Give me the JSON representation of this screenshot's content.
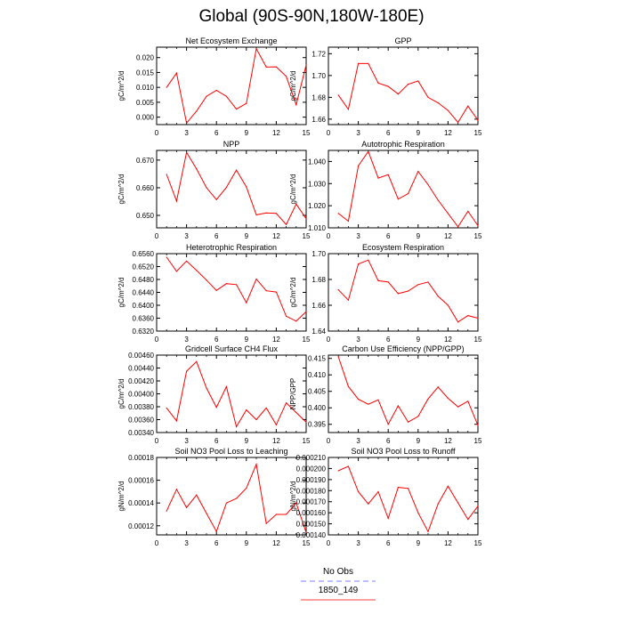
{
  "title": "Global (90S-90N,180W-180E)",
  "legend": [
    {
      "label": "No Obs",
      "color": "#9999ff",
      "dash": true
    },
    {
      "label": "1850_149",
      "color": "#ff6666",
      "dash": false
    }
  ],
  "line_color": "#ff0000",
  "chart_data": [
    {
      "type": "line",
      "title": "Net Ecosystem Exchange",
      "ylabel": "gC/m^2/d",
      "xlim": [
        0,
        15
      ],
      "xticks": [
        0,
        3,
        6,
        9,
        12,
        15
      ],
      "ylim": [
        -0.0025,
        0.0235
      ],
      "yticks": [
        0.0,
        0.005,
        0.01,
        0.015,
        0.02
      ],
      "yticklabels": [
        "0.000",
        "0.005",
        "0.010",
        "0.015",
        "0.020"
      ],
      "x": [
        1,
        2,
        3,
        4,
        5,
        6,
        7,
        8,
        9,
        10,
        11,
        12,
        13,
        14,
        15
      ],
      "y": [
        0.01,
        0.0148,
        -0.002,
        0.002,
        0.007,
        0.009,
        0.007,
        0.0027,
        0.0046,
        0.023,
        0.0168,
        0.0169,
        0.0137,
        0.0042,
        0.0175
      ]
    },
    {
      "type": "line",
      "title": "GPP",
      "ylabel": "gC/m^2/d",
      "xlim": [
        0,
        15
      ],
      "xticks": [
        0,
        3,
        6,
        9,
        12,
        15
      ],
      "ylim": [
        1.655,
        1.726
      ],
      "yticks": [
        1.66,
        1.68,
        1.7,
        1.72
      ],
      "yticklabels": [
        "1.66",
        "1.68",
        "1.70",
        "1.72"
      ],
      "x": [
        1,
        2,
        3,
        4,
        5,
        6,
        7,
        8,
        9,
        10,
        11,
        12,
        13,
        14,
        15
      ],
      "y": [
        1.682,
        1.669,
        1.711,
        1.711,
        1.693,
        1.69,
        1.683,
        1.692,
        1.695,
        1.68,
        1.675,
        1.668,
        1.657,
        1.672,
        1.659
      ]
    },
    {
      "type": "line",
      "title": "NPP",
      "ylabel": "gC/m^2/d",
      "xlim": [
        0,
        15
      ],
      "xticks": [
        0,
        3,
        6,
        9,
        12,
        15
      ],
      "ylim": [
        0.6455,
        0.6735
      ],
      "yticks": [
        0.65,
        0.66,
        0.67
      ],
      "yticklabels": [
        "0.650",
        "0.660",
        "0.670"
      ],
      "x": [
        1,
        2,
        3,
        4,
        5,
        6,
        7,
        8,
        9,
        10,
        11,
        12,
        13,
        14,
        15
      ],
      "y": [
        0.6648,
        0.6552,
        0.6728,
        0.6668,
        0.66,
        0.6557,
        0.6601,
        0.6664,
        0.6603,
        0.6502,
        0.6509,
        0.6507,
        0.6467,
        0.6541,
        0.6488
      ]
    },
    {
      "type": "line",
      "title": "Autotrophic Respiration",
      "ylabel": "gC/m^2/d",
      "xlim": [
        0,
        15
      ],
      "xticks": [
        0,
        3,
        6,
        9,
        12,
        15
      ],
      "ylim": [
        1.01,
        1.045
      ],
      "yticks": [
        1.01,
        1.02,
        1.03,
        1.04
      ],
      "yticklabels": [
        "1.010",
        "1.020",
        "1.030",
        "1.040"
      ],
      "x": [
        1,
        2,
        3,
        4,
        5,
        6,
        7,
        8,
        9,
        10,
        11,
        12,
        13,
        14,
        15
      ],
      "y": [
        1.0165,
        1.013,
        1.038,
        1.0445,
        1.0325,
        1.034,
        1.023,
        1.0255,
        1.0355,
        1.0295,
        1.0225,
        1.0165,
        1.0105,
        1.0175,
        1.011
      ]
    },
    {
      "type": "line",
      "title": "Heterotrophic Respiration",
      "ylabel": "gC/m^2/d",
      "xlim": [
        0,
        15
      ],
      "xticks": [
        0,
        3,
        6,
        9,
        12,
        15
      ],
      "ylim": [
        0.632,
        0.656
      ],
      "yticks": [
        0.632,
        0.636,
        0.64,
        0.644,
        0.648,
        0.652,
        0.656
      ],
      "yticklabels": [
        "0.6320",
        "0.6360",
        "0.6400",
        "0.6440",
        "0.6480",
        "0.6520",
        "0.6560"
      ],
      "x": [
        1,
        2,
        3,
        4,
        5,
        6,
        7,
        8,
        9,
        10,
        11,
        12,
        13,
        14,
        15
      ],
      "y": [
        0.6549,
        0.6505,
        0.6537,
        0.6508,
        0.6478,
        0.6446,
        0.6467,
        0.6464,
        0.6408,
        0.6481,
        0.6445,
        0.6441,
        0.6366,
        0.6351,
        0.638
      ]
    },
    {
      "type": "line",
      "title": "Ecosystem Respiration",
      "ylabel": "gC/m^2/d",
      "xlim": [
        0,
        15
      ],
      "xticks": [
        0,
        3,
        6,
        9,
        12,
        15
      ],
      "ylim": [
        1.64,
        1.7
      ],
      "yticks": [
        1.64,
        1.66,
        1.68,
        1.7
      ],
      "yticklabels": [
        "1.64",
        "1.66",
        "1.68",
        "1.70"
      ],
      "x": [
        1,
        2,
        3,
        4,
        5,
        6,
        7,
        8,
        9,
        10,
        11,
        12,
        13,
        14,
        15
      ],
      "y": [
        1.672,
        1.664,
        1.692,
        1.695,
        1.679,
        1.678,
        1.669,
        1.671,
        1.676,
        1.678,
        1.667,
        1.66,
        1.647,
        1.652,
        1.65
      ]
    },
    {
      "type": "line",
      "title": "Gridcell Surface CH4 Flux",
      "ylabel": "gC/m^2/d",
      "xlim": [
        0,
        15
      ],
      "xticks": [
        0,
        3,
        6,
        9,
        12,
        15
      ],
      "ylim": [
        0.0034,
        0.0046
      ],
      "yticks": [
        0.0034,
        0.0036,
        0.0038,
        0.004,
        0.0042,
        0.0044,
        0.0046
      ],
      "yticklabels": [
        "0.00340",
        "0.00360",
        "0.00380",
        "0.00400",
        "0.00420",
        "0.00440",
        "0.00460"
      ],
      "x": [
        1,
        2,
        3,
        4,
        5,
        6,
        7,
        8,
        9,
        10,
        11,
        12,
        13,
        14,
        15
      ],
      "y": [
        0.00378,
        0.00358,
        0.00435,
        0.0045,
        0.00409,
        0.00379,
        0.00411,
        0.00349,
        0.00375,
        0.0036,
        0.00378,
        0.00352,
        0.00386,
        0.00371,
        0.00356
      ]
    },
    {
      "type": "line",
      "title": "Carbon Use Efficiency (NPP/GPP)",
      "ylabel": "NPP/GPP",
      "xlim": [
        0,
        15
      ],
      "xticks": [
        0,
        3,
        6,
        9,
        12,
        15
      ],
      "ylim": [
        0.3925,
        0.416
      ],
      "yticks": [
        0.395,
        0.4,
        0.405,
        0.41,
        0.415
      ],
      "yticklabels": [
        "0.395",
        "0.400",
        "0.405",
        "0.410",
        "0.415"
      ],
      "x": [
        1,
        2,
        3,
        4,
        5,
        6,
        7,
        8,
        9,
        10,
        11,
        12,
        13,
        14,
        15
      ],
      "y": [
        0.4155,
        0.4065,
        0.4026,
        0.4011,
        0.4024,
        0.395,
        0.4006,
        0.3957,
        0.3974,
        0.4027,
        0.4063,
        0.4029,
        0.4003,
        0.402,
        0.3947
      ]
    },
    {
      "type": "line",
      "title": "Soil NO3 Pool Loss to Leaching",
      "ylabel": "gN/m^2/d",
      "xlim": [
        0,
        15
      ],
      "xticks": [
        0,
        3,
        6,
        9,
        12,
        15
      ],
      "ylim": [
        0.000112,
        0.00018
      ],
      "yticks": [
        0.00012,
        0.00014,
        0.00016,
        0.00018
      ],
      "yticklabels": [
        "0.00012",
        "0.00014",
        "0.00016",
        "0.00018"
      ],
      "x": [
        1,
        2,
        3,
        4,
        5,
        6,
        7,
        8,
        9,
        10,
        11,
        12,
        13,
        14,
        15
      ],
      "y": [
        0.000133,
        0.000152,
        0.000136,
        0.000147,
        0.000131,
        0.000115,
        0.00014,
        0.000144,
        0.000153,
        0.000174,
        0.000122,
        0.00013,
        0.00013,
        0.00014,
        0.000114
      ]
    },
    {
      "type": "line",
      "title": "Soil NO3 Pool Loss to Runoff",
      "ylabel": "gN/m^2/d",
      "xlim": [
        0,
        15
      ],
      "xticks": [
        0,
        3,
        6,
        9,
        12,
        15
      ],
      "ylim": [
        0.00014,
        0.00021
      ],
      "yticks": [
        0.00014,
        0.00015,
        0.00016,
        0.00017,
        0.00018,
        0.00019,
        0.0002,
        0.00021
      ],
      "yticklabels": [
        "0.000140",
        "0.000150",
        "0.000160",
        "0.000170",
        "0.000180",
        "0.000190",
        "0.000200",
        "0.000210"
      ],
      "x": [
        1,
        2,
        3,
        4,
        5,
        6,
        7,
        8,
        9,
        10,
        11,
        12,
        13,
        14,
        15
      ],
      "y": [
        0.000198,
        0.000202,
        0.000179,
        0.000168,
        0.000179,
        0.000155,
        0.000183,
        0.000182,
        0.00016,
        0.000143,
        0.000168,
        0.000184,
        0.000169,
        0.000154,
        0.000166
      ]
    }
  ]
}
